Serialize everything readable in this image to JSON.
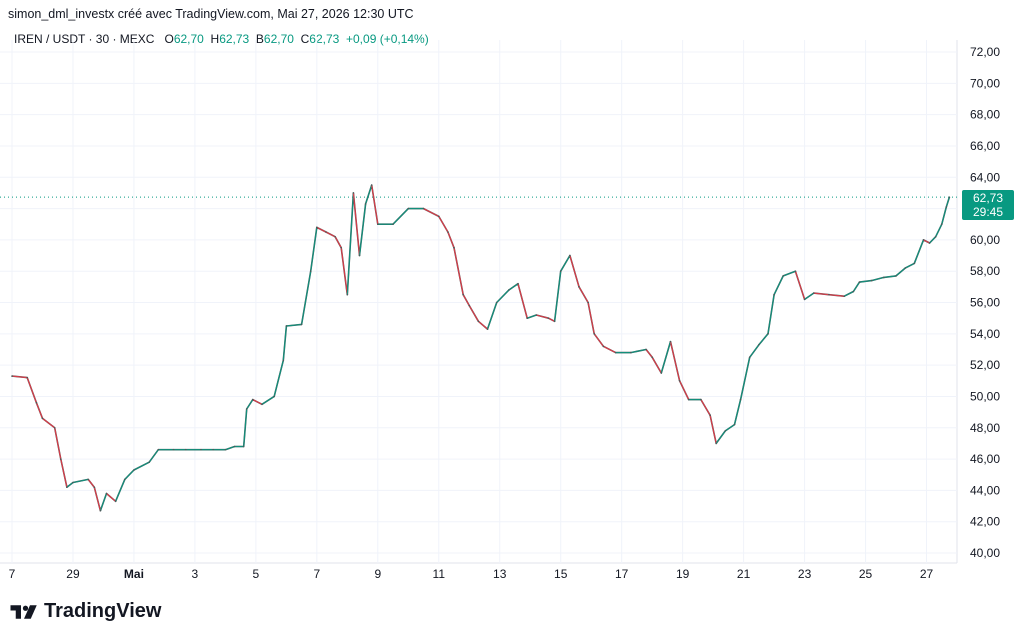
{
  "header": {
    "attribution": "simon_dml_investx créé avec TradingView.com, Mai 27, 2026 12:30 UTC"
  },
  "legend": {
    "symbol": "IREN / USDT · 30 · MEXC",
    "open_label": "O",
    "open": "62,70",
    "high_label": "H",
    "high": "62,73",
    "low_label": "B",
    "low": "62,70",
    "close_label": "C",
    "close": "62,73",
    "change": "+0,09 (+0,14%)"
  },
  "price_tag": {
    "price": "62,73",
    "countdown": "29:45"
  },
  "colors": {
    "up": "#089981",
    "down": "#f23645",
    "grid": "#f0f3fa",
    "text": "#131722"
  },
  "footer": {
    "brand": "TradingView",
    "icon": "tradingview-logo-icon"
  },
  "chart_data": {
    "type": "line",
    "ylim": [
      39,
      73
    ],
    "xlim": [
      0,
      31
    ],
    "last_price": 62.73,
    "y_ticks": [
      {
        "v": 40,
        "label": "40,00"
      },
      {
        "v": 42,
        "label": "42,00"
      },
      {
        "v": 44,
        "label": "44,00"
      },
      {
        "v": 46,
        "label": "46,00"
      },
      {
        "v": 48,
        "label": "48,00"
      },
      {
        "v": 50,
        "label": "50,00"
      },
      {
        "v": 52,
        "label": "52,00"
      },
      {
        "v": 54,
        "label": "54,00"
      },
      {
        "v": 56,
        "label": "56,00"
      },
      {
        "v": 58,
        "label": "58,00"
      },
      {
        "v": 60,
        "label": "60,00"
      },
      {
        "v": 62,
        "label": "62,00"
      },
      {
        "v": 64,
        "label": "64,00"
      },
      {
        "v": 66,
        "label": "66,00"
      },
      {
        "v": 68,
        "label": "68,00"
      },
      {
        "v": 70,
        "label": "70,00"
      },
      {
        "v": 72,
        "label": "72,00"
      }
    ],
    "x_ticks": [
      {
        "t": 0,
        "label": "7"
      },
      {
        "t": 2,
        "label": "29"
      },
      {
        "t": 4,
        "label": "Mai"
      },
      {
        "t": 6,
        "label": "3"
      },
      {
        "t": 8,
        "label": "5"
      },
      {
        "t": 10,
        "label": "7"
      },
      {
        "t": 12,
        "label": "9"
      },
      {
        "t": 14,
        "label": "11"
      },
      {
        "t": 16,
        "label": "13"
      },
      {
        "t": 18,
        "label": "15"
      },
      {
        "t": 20,
        "label": "17"
      },
      {
        "t": 22,
        "label": "19"
      },
      {
        "t": 24,
        "label": "21"
      },
      {
        "t": 26,
        "label": "23"
      },
      {
        "t": 28,
        "label": "25"
      },
      {
        "t": 30,
        "label": "27"
      }
    ],
    "series": [
      {
        "values": [
          [
            0,
            51.3
          ],
          [
            0.5,
            51.2
          ],
          [
            0.8,
            49.6
          ],
          [
            1.0,
            48.6
          ],
          [
            1.4,
            48.0
          ],
          [
            1.6,
            46.0
          ],
          [
            1.8,
            44.2
          ],
          [
            2.0,
            44.5
          ],
          [
            2.5,
            44.7
          ],
          [
            2.7,
            44.2
          ],
          [
            2.9,
            42.7
          ],
          [
            3.1,
            43.8
          ],
          [
            3.4,
            43.3
          ],
          [
            3.7,
            44.7
          ],
          [
            4.0,
            45.3
          ],
          [
            4.5,
            45.8
          ],
          [
            4.8,
            46.6
          ],
          [
            5.3,
            46.6
          ],
          [
            5.7,
            46.6
          ],
          [
            6.2,
            46.6
          ],
          [
            6.6,
            46.6
          ],
          [
            7.0,
            46.6
          ],
          [
            7.3,
            46.8
          ],
          [
            7.6,
            46.8
          ],
          [
            7.7,
            49.2
          ],
          [
            7.9,
            49.8
          ],
          [
            8.2,
            49.5
          ],
          [
            8.6,
            50.0
          ],
          [
            8.9,
            52.3
          ],
          [
            9.0,
            54.5
          ],
          [
            9.5,
            54.6
          ],
          [
            9.8,
            58.0
          ],
          [
            10.0,
            60.8
          ],
          [
            10.3,
            60.5
          ],
          [
            10.6,
            60.2
          ],
          [
            10.8,
            59.5
          ],
          [
            11.0,
            56.5
          ],
          [
            11.2,
            63.0
          ],
          [
            11.4,
            59.0
          ],
          [
            11.6,
            62.3
          ],
          [
            11.8,
            63.5
          ],
          [
            12.0,
            61.0
          ],
          [
            12.5,
            61.0
          ],
          [
            13.0,
            62.0
          ],
          [
            13.5,
            62.0
          ],
          [
            14.0,
            61.5
          ],
          [
            14.3,
            60.5
          ],
          [
            14.5,
            59.5
          ],
          [
            14.8,
            56.5
          ],
          [
            15.0,
            55.8
          ],
          [
            15.3,
            54.8
          ],
          [
            15.6,
            54.3
          ],
          [
            15.9,
            56.0
          ],
          [
            16.3,
            56.8
          ],
          [
            16.6,
            57.2
          ],
          [
            16.9,
            55.0
          ],
          [
            17.2,
            55.2
          ],
          [
            17.6,
            55.0
          ],
          [
            17.8,
            54.8
          ],
          [
            18.0,
            58.0
          ],
          [
            18.3,
            59.0
          ],
          [
            18.6,
            57.0
          ],
          [
            18.9,
            56.0
          ],
          [
            19.1,
            54.0
          ],
          [
            19.4,
            53.2
          ],
          [
            19.8,
            52.8
          ],
          [
            20.3,
            52.8
          ],
          [
            20.8,
            53.0
          ],
          [
            21.0,
            52.5
          ],
          [
            21.3,
            51.5
          ],
          [
            21.6,
            53.5
          ],
          [
            21.9,
            51.0
          ],
          [
            22.2,
            49.8
          ],
          [
            22.6,
            49.8
          ],
          [
            22.9,
            48.8
          ],
          [
            23.1,
            47.0
          ],
          [
            23.4,
            47.8
          ],
          [
            23.7,
            48.2
          ],
          [
            23.9,
            49.8
          ],
          [
            24.2,
            52.5
          ],
          [
            24.5,
            53.3
          ],
          [
            24.8,
            54.0
          ],
          [
            25.0,
            56.5
          ],
          [
            25.3,
            57.7
          ],
          [
            25.7,
            58.0
          ],
          [
            26.0,
            56.2
          ],
          [
            26.3,
            56.6
          ],
          [
            26.8,
            56.5
          ],
          [
            27.3,
            56.4
          ],
          [
            27.6,
            56.7
          ],
          [
            27.8,
            57.3
          ],
          [
            28.2,
            57.4
          ],
          [
            28.6,
            57.6
          ],
          [
            29.0,
            57.7
          ],
          [
            29.3,
            58.2
          ],
          [
            29.6,
            58.5
          ],
          [
            29.9,
            60.0
          ],
          [
            30.1,
            59.8
          ],
          [
            30.3,
            60.2
          ],
          [
            30.5,
            61.0
          ],
          [
            30.65,
            62.1
          ],
          [
            30.75,
            62.73
          ]
        ]
      }
    ]
  }
}
